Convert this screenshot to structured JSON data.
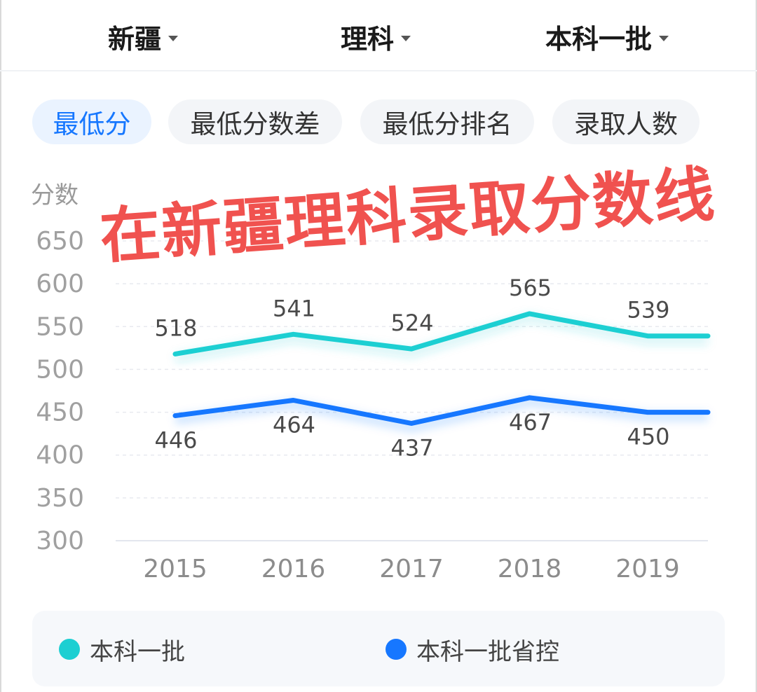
{
  "filters": [
    {
      "label": "新疆"
    },
    {
      "label": "理科"
    },
    {
      "label": "本科一批"
    }
  ],
  "tabs": [
    {
      "label": "最低分",
      "active": true
    },
    {
      "label": "最低分数差",
      "active": false
    },
    {
      "label": "最低分排名",
      "active": false
    },
    {
      "label": "录取人数",
      "active": false
    }
  ],
  "overlay_title": "在新疆理科录取分数线",
  "colors": {
    "series1": "#1ccfd2",
    "series2": "#1677ff",
    "accent": "#1677ff",
    "overlay": "#f0524f"
  },
  "chart_data": {
    "type": "line",
    "ylabel": "分数",
    "ylim": [
      300,
      650
    ],
    "yticks": [
      300,
      350,
      400,
      450,
      500,
      550,
      600,
      650
    ],
    "x": [
      "2015",
      "2016",
      "2017",
      "2018",
      "2019"
    ],
    "grid": true,
    "legend_position": "bottom",
    "series": [
      {
        "name": "本科一批",
        "values": [
          518,
          541,
          524,
          565,
          539
        ]
      },
      {
        "name": "本科一批省控",
        "values": [
          446,
          464,
          437,
          467,
          450
        ]
      }
    ]
  }
}
